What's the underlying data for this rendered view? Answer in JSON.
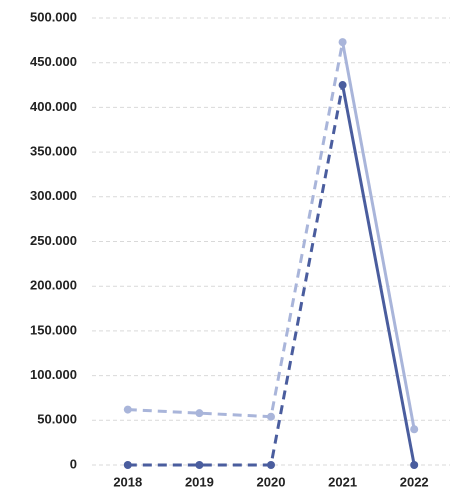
{
  "chart_data": {
    "type": "line",
    "categories": [
      "2018",
      "2019",
      "2020",
      "2021",
      "2022"
    ],
    "series": [
      {
        "color": "#a9b5da",
        "values": [
          62000,
          58000,
          54000,
          473000,
          40000
        ]
      },
      {
        "color": "#4a5d9e",
        "values": [
          0,
          0,
          0,
          425000,
          0
        ]
      }
    ],
    "ylim": [
      0,
      500000
    ],
    "yticks": [
      {
        "value": 0,
        "label": "0"
      },
      {
        "value": 50000,
        "label": "50.000"
      },
      {
        "value": 100000,
        "label": "100.000"
      },
      {
        "value": 150000,
        "label": "150.000"
      },
      {
        "value": 200000,
        "label": "200.000"
      },
      {
        "value": 250000,
        "label": "250.000"
      },
      {
        "value": 300000,
        "label": "300.000"
      },
      {
        "value": 350000,
        "label": "350.000"
      },
      {
        "value": 400000,
        "label": "400.000"
      },
      {
        "value": 450000,
        "label": "450.000"
      },
      {
        "value": 500000,
        "label": "500.000"
      }
    ],
    "grid": true
  }
}
